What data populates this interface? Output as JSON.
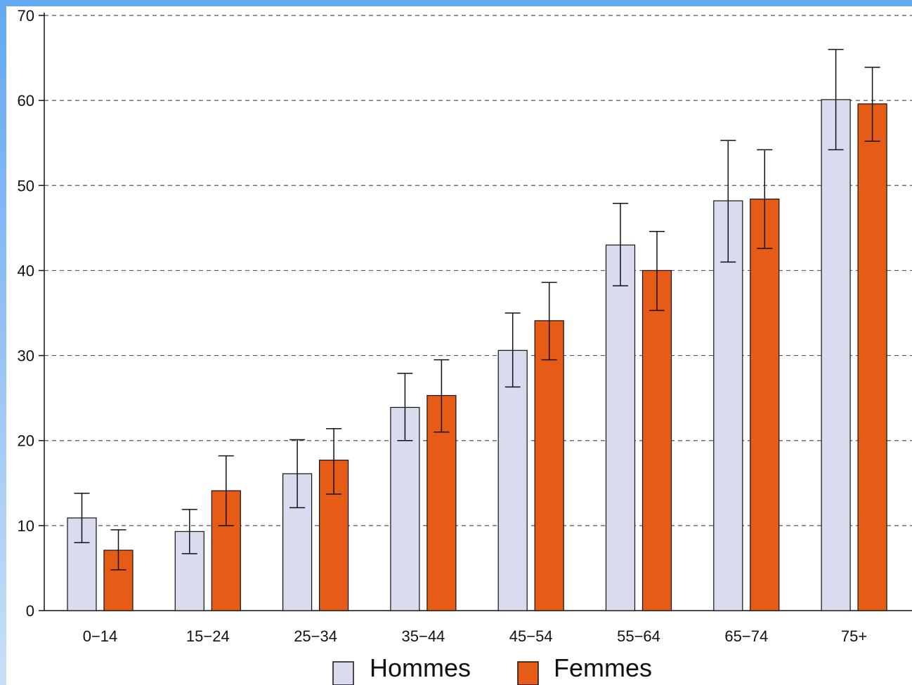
{
  "chart_data": {
    "type": "bar",
    "title": "",
    "xlabel": "",
    "ylabel": "",
    "ylim": [
      0,
      70
    ],
    "yticks": [
      "0",
      "10",
      "20",
      "30",
      "40",
      "50",
      "60",
      "70"
    ],
    "grid": "horizontal dashed",
    "legend_position": "bottom",
    "categories": [
      "0−14",
      "15−24",
      "25−34",
      "35−44",
      "45−54",
      "55−64",
      "65−74",
      "75+"
    ],
    "series": [
      {
        "name": "Hommes",
        "color": "#d8dcee",
        "values": [
          10.9,
          9.3,
          16.1,
          23.9,
          30.6,
          43.0,
          48.2,
          60.1
        ],
        "err_low": [
          8.0,
          6.7,
          12.1,
          20.0,
          26.3,
          38.2,
          41.0,
          54.2
        ],
        "err_high": [
          13.8,
          11.9,
          20.1,
          27.9,
          35.0,
          47.9,
          55.3,
          66.0
        ]
      },
      {
        "name": "Femmes",
        "color": "#e65c17",
        "values": [
          7.1,
          14.1,
          17.7,
          25.3,
          34.1,
          40.0,
          48.4,
          59.6
        ],
        "err_low": [
          4.8,
          10.0,
          13.7,
          21.0,
          29.5,
          35.3,
          42.6,
          55.2
        ],
        "err_high": [
          9.5,
          18.2,
          21.4,
          29.5,
          38.6,
          44.6,
          54.2,
          63.9
        ]
      }
    ]
  },
  "colors": {
    "frame_top": "#62a8f2",
    "frame_bottom": "#c9dff7",
    "grid": "#555555",
    "axis": "#111111"
  }
}
